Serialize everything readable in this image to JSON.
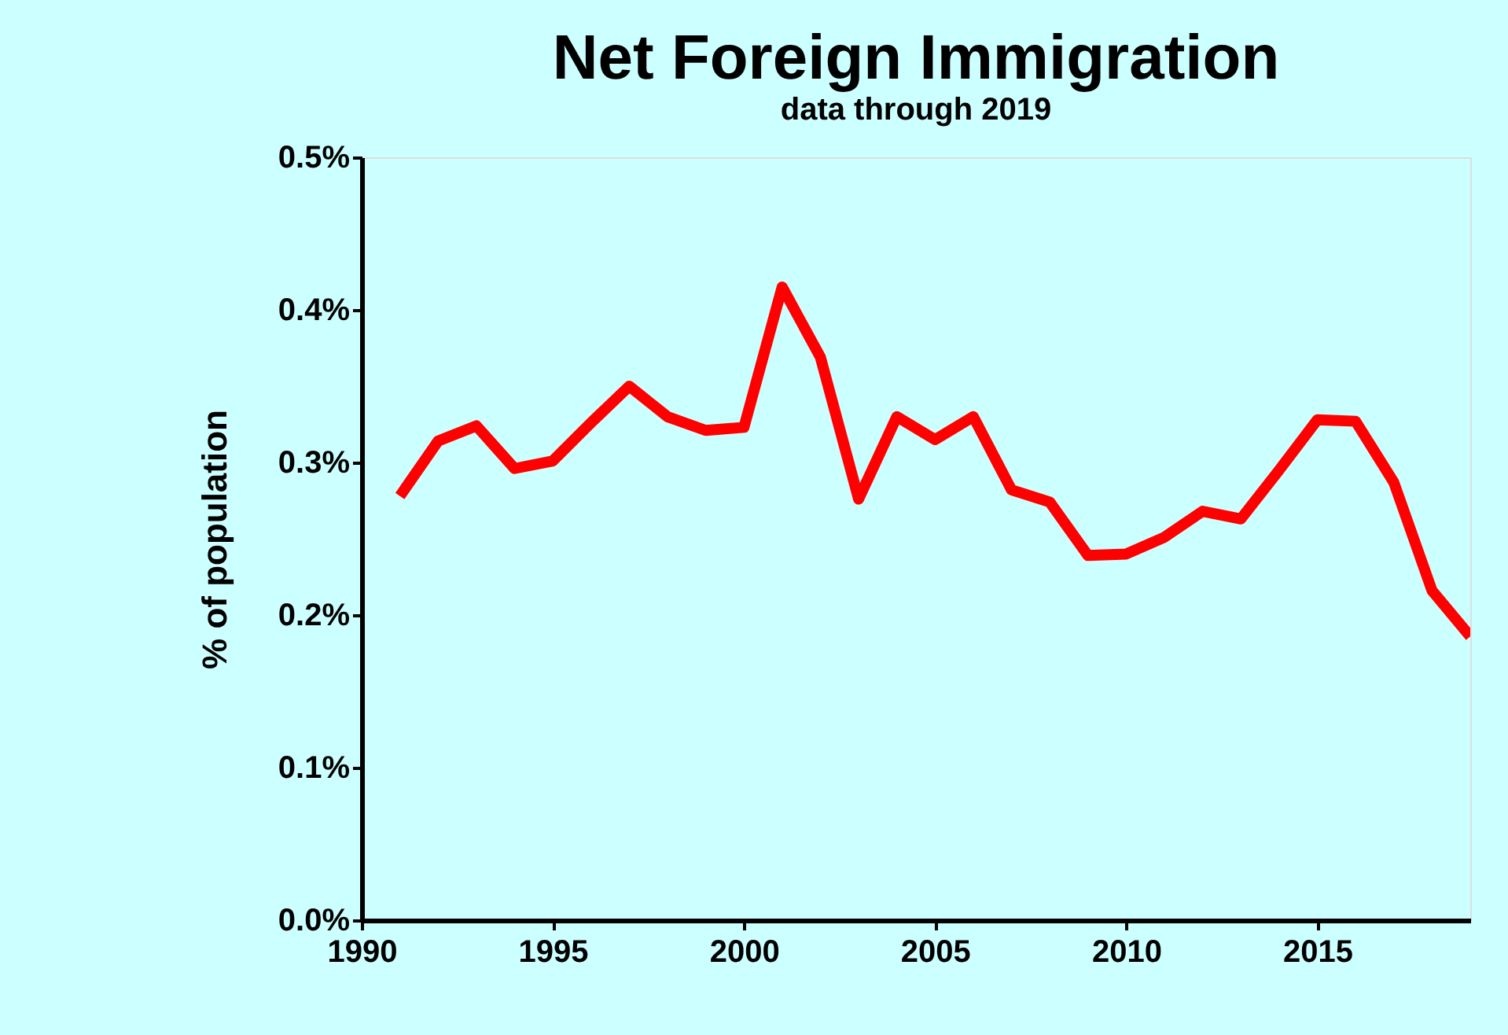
{
  "chart_data": {
    "type": "line",
    "title": "Net Foreign Immigration",
    "subtitle": "data through 2019",
    "ylabel": "% of population",
    "x": [
      1991,
      1992,
      1993,
      1994,
      1995,
      1996,
      1997,
      1998,
      1999,
      2000,
      2001,
      2002,
      2003,
      2004,
      2005,
      2006,
      2007,
      2008,
      2009,
      2010,
      2011,
      2012,
      2013,
      2014,
      2015,
      2016,
      2017,
      2018,
      2019
    ],
    "series": [
      {
        "color": "#ff0000",
        "values": [
          0.278,
          0.314,
          0.324,
          0.296,
          0.301,
          0.326,
          0.35,
          0.33,
          0.321,
          0.323,
          0.415,
          0.369,
          0.276,
          0.33,
          0.315,
          0.33,
          0.282,
          0.274,
          0.239,
          0.24,
          0.251,
          0.268,
          0.263,
          0.295,
          0.328,
          0.327,
          0.287,
          0.216,
          0.186
        ]
      }
    ],
    "xlim": [
      1990,
      2019
    ],
    "xticks": [
      1990,
      1995,
      2000,
      2005,
      2010,
      2015
    ],
    "ylim": [
      0,
      0.5
    ],
    "yticks": [
      {
        "value": 0,
        "label": "0.0%"
      },
      {
        "value": 0.1,
        "label": "0.1%"
      },
      {
        "value": 0.2,
        "label": "0.2%"
      },
      {
        "value": 0.3,
        "label": "0.3%"
      },
      {
        "value": 0.4,
        "label": "0.4%"
      },
      {
        "value": 0.5,
        "label": "0.5%"
      }
    ],
    "grid": false,
    "marker": "none",
    "line_style": "solid"
  }
}
